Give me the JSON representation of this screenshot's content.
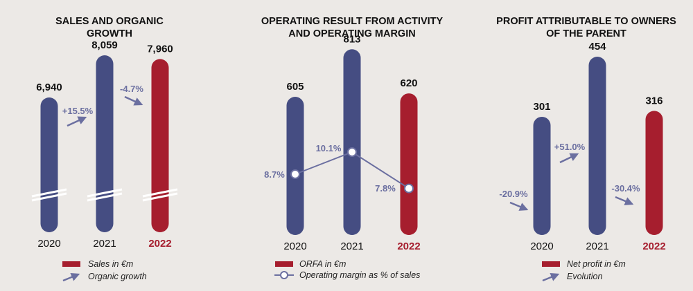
{
  "colors": {
    "blue": "#454d82",
    "red": "#a61e2e",
    "accent": "#6b6fa0",
    "break": "#ffffff",
    "text": "#111111"
  },
  "chart_data": [
    {
      "type": "bar",
      "title": [
        "SALES AND ORGANIC",
        "GROWTH"
      ],
      "categories": [
        "2020",
        "2021",
        "2022"
      ],
      "series": [
        {
          "name": "Sales in €m",
          "values": [
            6940,
            8059,
            7960
          ],
          "labels": [
            "6,940",
            "8,059",
            "7,960"
          ]
        }
      ],
      "growth": {
        "name": "Organic growth",
        "labels": [
          "+15.5%",
          "-4.7%"
        ]
      },
      "highlight_index": 2,
      "axis_break": true,
      "legend_position": "bottom"
    },
    {
      "type": "bar",
      "title": [
        "OPERATING RESULT FROM ACTIVITY",
        "AND OPERATING MARGIN"
      ],
      "categories": [
        "2020",
        "2021",
        "2022"
      ],
      "series": [
        {
          "name": "ORFA in €m",
          "values": [
            605,
            813,
            620
          ],
          "labels": [
            "605",
            "813",
            "620"
          ]
        }
      ],
      "margin": {
        "name": "Operating margin as % of sales",
        "values": [
          8.7,
          10.1,
          7.8
        ],
        "labels": [
          "8.7%",
          "10.1%",
          "7.8%"
        ]
      },
      "highlight_index": 2,
      "legend_position": "bottom"
    },
    {
      "type": "bar",
      "title": [
        "PROFIT ATTRIBUTABLE TO OWNERS",
        "OF THE PARENT"
      ],
      "categories": [
        "2020",
        "2021",
        "2022"
      ],
      "series": [
        {
          "name": "Net profit in €m",
          "values": [
            301,
            454,
            316
          ],
          "labels": [
            "301",
            "454",
            "316"
          ]
        }
      ],
      "growth": {
        "name": "Evolution",
        "labels": [
          "-20.9%",
          "+51.0%",
          "-30.4%"
        ]
      },
      "highlight_index": 2,
      "legend_position": "bottom"
    }
  ]
}
